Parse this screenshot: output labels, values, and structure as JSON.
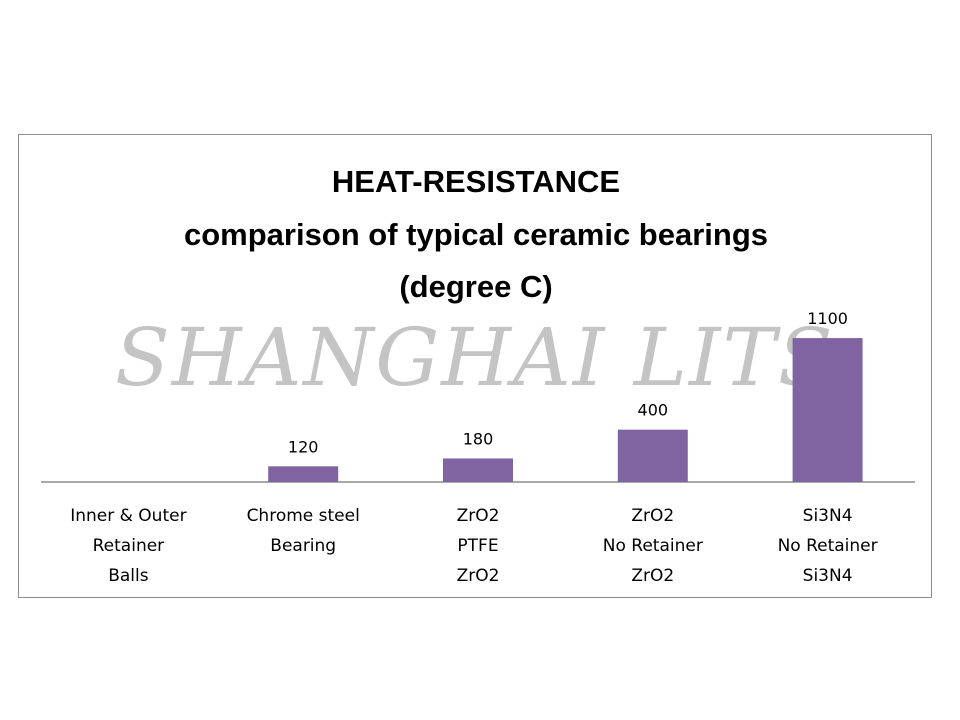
{
  "chart_data": {
    "type": "bar",
    "title": [
      "HEAT-RESISTANCE",
      "comparison of typical ceramic bearings",
      "(degree C)"
    ],
    "categories": [
      [
        "Inner & Outer",
        "Retainer",
        "Balls"
      ],
      [
        "Chrome steel",
        "Bearing"
      ],
      [
        "ZrO2",
        "PTFE",
        "ZrO2"
      ],
      [
        "ZrO2",
        "No Retainer",
        "ZrO2"
      ],
      [
        "Si3N4",
        "No Retainer",
        "Si3N4"
      ]
    ],
    "values": [
      null,
      120,
      180,
      400,
      1100
    ],
    "ylim": [
      0,
      1200
    ],
    "grid": false,
    "legend": "none",
    "bar_color": "#8064a2"
  },
  "watermark": "SHANGHAI LITS"
}
